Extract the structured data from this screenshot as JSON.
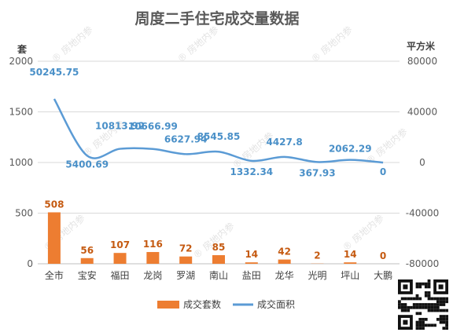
{
  "chart_data": {
    "type": "bar",
    "title": "周度二手住宅成交量数据",
    "left_axis": {
      "unit": "套",
      "ticks": [
        0,
        500,
        1000,
        1500,
        2000
      ],
      "range": [
        0,
        2000
      ]
    },
    "right_axis": {
      "unit": "平方米",
      "ticks": [
        -80000,
        -40000,
        0,
        40000,
        80000
      ],
      "range": [
        -80000,
        80000
      ]
    },
    "categories": [
      "全市",
      "宝安",
      "福田",
      "龙岗",
      "罗湖",
      "南山",
      "盐田",
      "龙华",
      "光明",
      "坪山",
      "大鹏"
    ],
    "series": [
      {
        "name": "成交套数",
        "type": "bar",
        "axis": "left",
        "color": "#ed7d31",
        "values": [
          508,
          56,
          107,
          116,
          72,
          85,
          14,
          42,
          2,
          14,
          0
        ],
        "labels": [
          "508",
          "56",
          "107",
          "116",
          "72",
          "85",
          "14",
          "42",
          "2",
          "14",
          "0"
        ]
      },
      {
        "name": "成交面积",
        "type": "line",
        "axis": "right",
        "color": "#5b9bd5",
        "values": [
          50245.75,
          5400.69,
          10813.92,
          10666.99,
          6627.94,
          8545.85,
          1332.34,
          4427.8,
          367.93,
          2062.29,
          0
        ],
        "labels": [
          "50245.75",
          "5400.69",
          "10813.92",
          "10666.99",
          "6627.94",
          "8545.85",
          "1332.34",
          "4427.8",
          "367.93",
          "2062.29",
          "0"
        ]
      }
    ],
    "gridlines": true,
    "legend": "bottom",
    "watermark": "房地内参"
  }
}
